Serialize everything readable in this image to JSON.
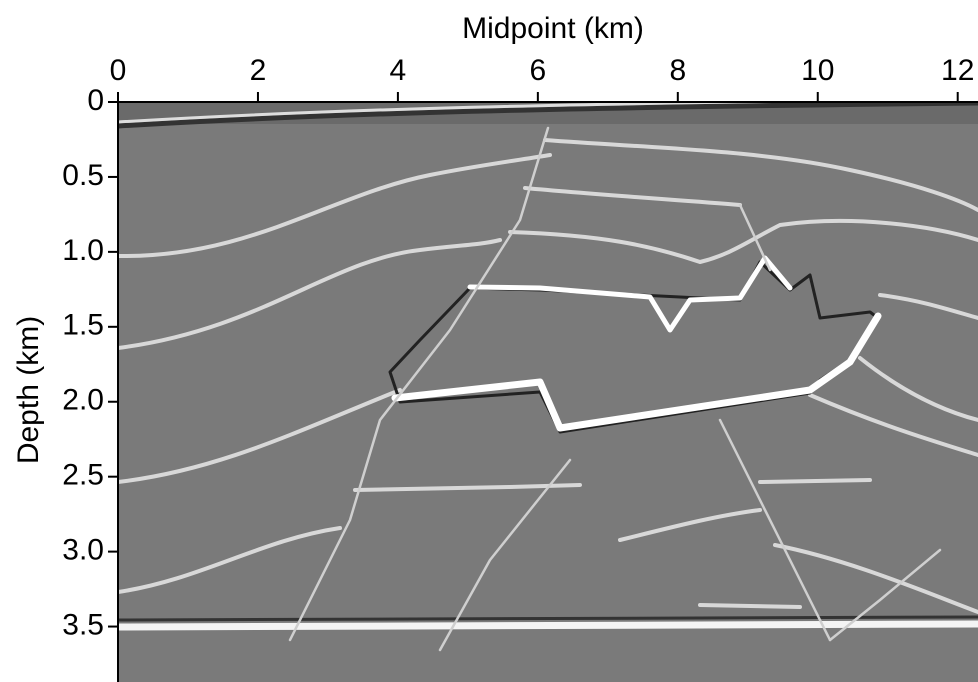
{
  "chart_data": {
    "type": "image",
    "x_label": "Midpoint (km)",
    "y_label": "Depth (km)",
    "xlim": [
      0,
      12.29
    ],
    "xticks": [
      0,
      2,
      4,
      6,
      8,
      10,
      12
    ],
    "ylim": [
      0,
      3.87
    ],
    "y_inverted": true,
    "yticks": [
      0,
      0.5,
      {
        "value": 1,
        "label": "1.0"
      },
      1.5,
      {
        "value": 2,
        "label": "2.0"
      },
      2.5,
      {
        "value": 3,
        "label": "3.0"
      },
      3.5
    ]
  }
}
